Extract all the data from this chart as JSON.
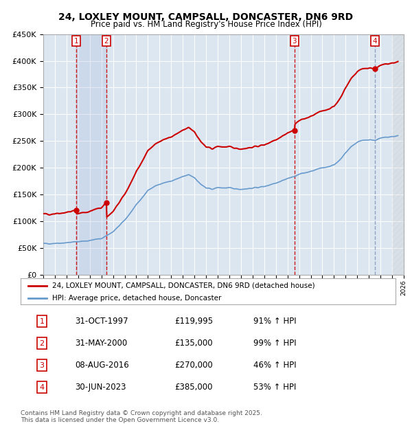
{
  "title_line1": "24, LOXLEY MOUNT, CAMPSALL, DONCASTER, DN6 9RD",
  "title_line2": "Price paid vs. HM Land Registry's House Price Index (HPI)",
  "background_color": "#dce6f1",
  "plot_bg_color": "#dce6f1",
  "transactions": [
    {
      "num": 1,
      "date": "31-OCT-1997",
      "date_x": 1997.83,
      "price": 119995,
      "pct": "91%",
      "dir": "↑"
    },
    {
      "num": 2,
      "date": "31-MAY-2000",
      "date_x": 2000.42,
      "price": 135000,
      "pct": "99%",
      "dir": "↑"
    },
    {
      "num": 3,
      "date": "08-AUG-2016",
      "date_x": 2016.6,
      "price": 270000,
      "pct": "46%",
      "dir": "↑"
    },
    {
      "num": 4,
      "date": "30-JUN-2023",
      "date_x": 2023.5,
      "price": 385000,
      "pct": "53%",
      "dir": "↑"
    }
  ],
  "legend_label_red": "24, LOXLEY MOUNT, CAMPSALL, DONCASTER, DN6 9RD (detached house)",
  "legend_label_blue": "HPI: Average price, detached house, Doncaster",
  "footer": "Contains HM Land Registry data © Crown copyright and database right 2025.\nThis data is licensed under the Open Government Licence v3.0.",
  "ylim": [
    0,
    450000
  ],
  "xlim_start": 1995.0,
  "xlim_end": 2026.0,
  "hatch_start": 2025.0,
  "red_color": "#cc0000",
  "blue_color": "#6699cc",
  "vline_color_red": "#cc0000",
  "vline_color_blue": "#8899bb"
}
